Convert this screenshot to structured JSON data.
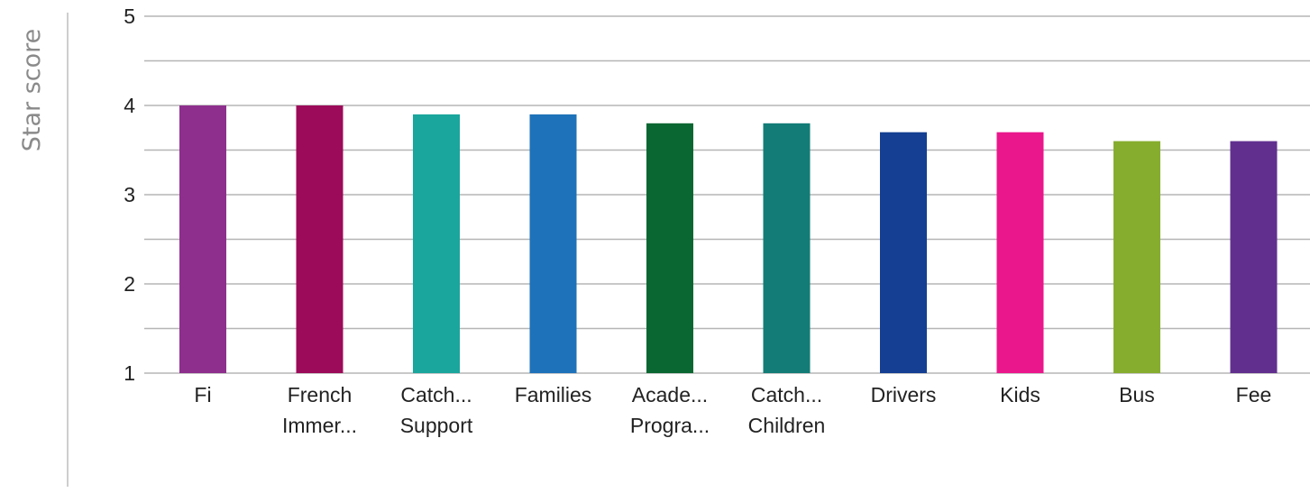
{
  "chart_data": {
    "type": "bar",
    "title": "",
    "xlabel": "",
    "ylabel": "Star score",
    "ylim": [
      1,
      5
    ],
    "yticks": [
      1,
      2,
      3,
      4,
      5
    ],
    "minor_gridlines": [
      1.5,
      2.5,
      3.5,
      4.5
    ],
    "grid": true,
    "legend": "none",
    "categories": [
      "Fi",
      "French Immer...",
      "Catch... Support",
      "Families",
      "Acade... Progra...",
      "Catch... Children",
      "Drivers",
      "Kids",
      "Bus",
      "Fee"
    ],
    "category_lines": [
      [
        "Fi"
      ],
      [
        "French",
        "Immer..."
      ],
      [
        "Catch...",
        "Support"
      ],
      [
        "Families"
      ],
      [
        "Acade...",
        "Progra..."
      ],
      [
        "Catch...",
        "Children"
      ],
      [
        "Drivers"
      ],
      [
        "Kids"
      ],
      [
        "Bus"
      ],
      [
        "Fee"
      ]
    ],
    "values": [
      4.0,
      4.0,
      3.9,
      3.9,
      3.8,
      3.8,
      3.7,
      3.7,
      3.6,
      3.6
    ],
    "colors": [
      "#8e2f8d",
      "#9c0b59",
      "#1aa69c",
      "#1e72b9",
      "#0b6731",
      "#137c76",
      "#143f93",
      "#ea178c",
      "#87ad2f",
      "#61308f"
    ],
    "gridline_color": "#b5b5b5",
    "axis_color": "#bdbdbd"
  }
}
